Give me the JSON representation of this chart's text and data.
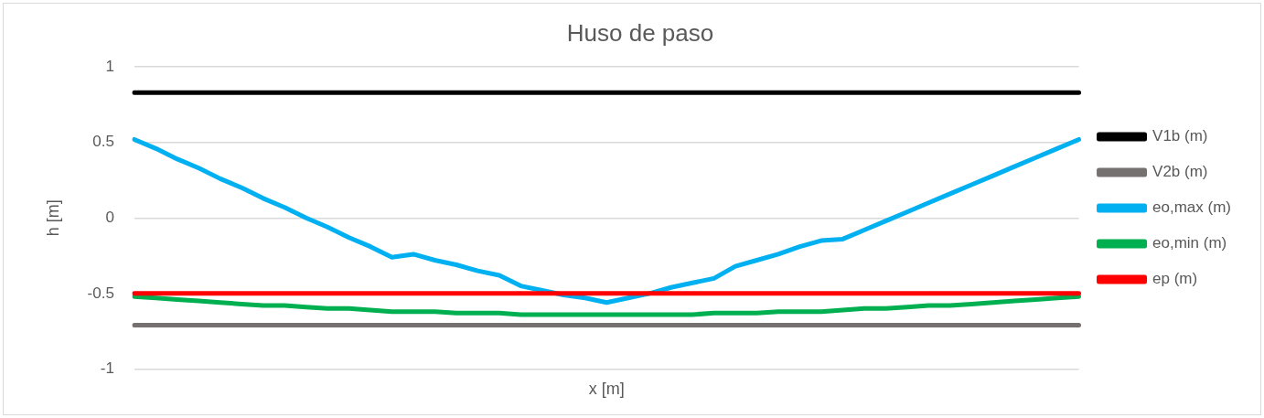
{
  "chart_data": {
    "type": "line",
    "title": "Huso de paso",
    "xlabel": "x [m]",
    "ylabel": "h [m]",
    "categories": [
      null,
      null,
      null,
      null,
      null,
      null,
      null,
      null,
      null,
      null,
      null,
      null,
      null,
      null,
      null,
      null,
      null,
      null,
      null,
      null,
      null,
      null,
      null,
      null,
      null,
      null,
      null,
      null,
      null,
      null,
      null,
      null,
      null,
      null,
      null,
      null,
      null,
      null,
      null,
      null,
      null,
      null,
      null,
      null,
      null
    ],
    "series": [
      {
        "name": "V1b (m)",
        "color": "#000000",
        "values": [
          0.83,
          0.83,
          0.83,
          0.83,
          0.83,
          0.83,
          0.83,
          0.83,
          0.83,
          0.83,
          0.83,
          0.83,
          0.83,
          0.83,
          0.83,
          0.83,
          0.83,
          0.83,
          0.83,
          0.83,
          0.83,
          0.83,
          0.83,
          0.83,
          0.83,
          0.83,
          0.83,
          0.83,
          0.83,
          0.83,
          0.83,
          0.83,
          0.83,
          0.83,
          0.83,
          0.83,
          0.83,
          0.83,
          0.83,
          0.83,
          0.83,
          0.83,
          0.83,
          0.83,
          0.83
        ]
      },
      {
        "name": "V2b (m)",
        "color": "#767171",
        "values": [
          -0.71,
          -0.71,
          -0.71,
          -0.71,
          -0.71,
          -0.71,
          -0.71,
          -0.71,
          -0.71,
          -0.71,
          -0.71,
          -0.71,
          -0.71,
          -0.71,
          -0.71,
          -0.71,
          -0.71,
          -0.71,
          -0.71,
          -0.71,
          -0.71,
          -0.71,
          -0.71,
          -0.71,
          -0.71,
          -0.71,
          -0.71,
          -0.71,
          -0.71,
          -0.71,
          -0.71,
          -0.71,
          -0.71,
          -0.71,
          -0.71,
          -0.71,
          -0.71,
          -0.71,
          -0.71,
          -0.71,
          -0.71,
          -0.71,
          -0.71,
          -0.71,
          -0.71
        ]
      },
      {
        "name": "eo,max (m)",
        "color": "#00b0f0",
        "values": [
          0.52,
          0.46,
          0.39,
          0.33,
          0.26,
          0.2,
          0.13,
          0.07,
          0,
          -0.06,
          -0.13,
          -0.19,
          -0.26,
          -0.24,
          -0.28,
          -0.31,
          -0.35,
          -0.38,
          -0.45,
          -0.48,
          -0.51,
          -0.53,
          -0.56,
          -0.53,
          -0.5,
          -0.46,
          -0.43,
          -0.4,
          -0.32,
          -0.28,
          -0.24,
          -0.19,
          -0.15,
          -0.14,
          -0.08,
          -0.02,
          0.04,
          0.1,
          0.16,
          0.22,
          0.28,
          0.34,
          0.4,
          0.46,
          0.52
        ]
      },
      {
        "name": "eo,min (m)",
        "color": "#00b050",
        "values": [
          -0.52,
          -0.53,
          -0.54,
          -0.55,
          -0.56,
          -0.57,
          -0.58,
          -0.58,
          -0.59,
          -0.6,
          -0.6,
          -0.61,
          -0.62,
          -0.62,
          -0.62,
          -0.63,
          -0.63,
          -0.63,
          -0.64,
          -0.64,
          -0.64,
          -0.64,
          -0.64,
          -0.64,
          -0.64,
          -0.64,
          -0.64,
          -0.63,
          -0.63,
          -0.63,
          -0.62,
          -0.62,
          -0.62,
          -0.61,
          -0.6,
          -0.6,
          -0.59,
          -0.58,
          -0.58,
          -0.57,
          -0.56,
          -0.55,
          -0.54,
          -0.53,
          -0.52
        ]
      },
      {
        "name": "ep (m)",
        "color": "#ff0000",
        "values": [
          -0.5,
          -0.5,
          -0.5,
          -0.5,
          -0.5,
          -0.5,
          -0.5,
          -0.5,
          -0.5,
          -0.5,
          -0.5,
          -0.5,
          -0.5,
          -0.5,
          -0.5,
          -0.5,
          -0.5,
          -0.5,
          -0.5,
          -0.5,
          -0.5,
          -0.5,
          -0.5,
          -0.5,
          -0.5,
          -0.5,
          -0.5,
          -0.5,
          -0.5,
          -0.5,
          -0.5,
          -0.5,
          -0.5,
          -0.5,
          -0.5,
          -0.5,
          -0.5,
          -0.5,
          -0.5,
          -0.5,
          -0.5,
          -0.5,
          -0.5,
          -0.5,
          -0.5
        ]
      }
    ],
    "ylim": [
      -1,
      1
    ],
    "yticks": [
      -1,
      -0.5,
      0,
      0.5,
      1
    ],
    "grid": "y",
    "legend": "right",
    "tick_labels": "y",
    "marker": "none"
  }
}
